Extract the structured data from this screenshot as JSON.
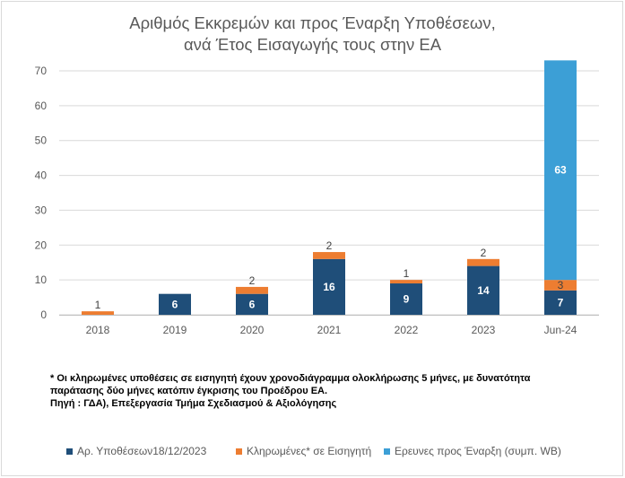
{
  "chart_data": {
    "type": "bar",
    "stacked": true,
    "title_line1": "Αριθμός Εκκρεμών και  προς  Έναρξη Υποθέσεων,",
    "title_line2": "ανά Έτος Εισαγωγής τους στην ΕΑ",
    "categories": [
      "2018",
      "2019",
      "2020",
      "2021",
      "2022",
      "2023",
      "Jun-24"
    ],
    "ylim": [
      0,
      70
    ],
    "yticks": [
      0,
      10,
      20,
      30,
      40,
      50,
      60,
      70
    ],
    "grid": true,
    "legend_position": "bottom",
    "series": [
      {
        "name": "Αρ. Υποθέσεων18/12/2023",
        "color": "#1f4e79",
        "values": [
          0,
          6,
          6,
          16,
          9,
          14,
          7
        ],
        "labels": [
          "",
          "6",
          "6",
          "16",
          "9",
          "14",
          "7"
        ]
      },
      {
        "name": "Κληρωμένες* σε Εισηγητή",
        "color": "#ed7d31",
        "values": [
          1,
          0,
          2,
          2,
          1,
          2,
          3
        ],
        "labels": [
          "1",
          "",
          "2",
          "2",
          "1",
          "2",
          "3"
        ]
      },
      {
        "name": "Ερευνες προς Έναρξη (συμπ. WB)",
        "color": "#3c9fd6",
        "values": [
          0,
          0,
          0,
          0,
          0,
          0,
          63
        ],
        "labels": [
          "",
          "",
          "",
          "",
          "",
          "",
          "63"
        ]
      }
    ]
  },
  "notes": {
    "line1": "* Οι κληρωμένες υποθέσεις σε εισηγητή έχουν χρονοδιάγραμμα ολοκλήρωσης 5  μήνες, με δυνατότητα",
    "line2": "παράτασης δύο μήνες κατόπιν έγκρισης του Προέδρου ΕΑ.",
    "line3": "Πηγή : ΓΔΑ), Επεξεργασία Τμήμα Σχεδιασμού & Αξιολόγησης"
  }
}
